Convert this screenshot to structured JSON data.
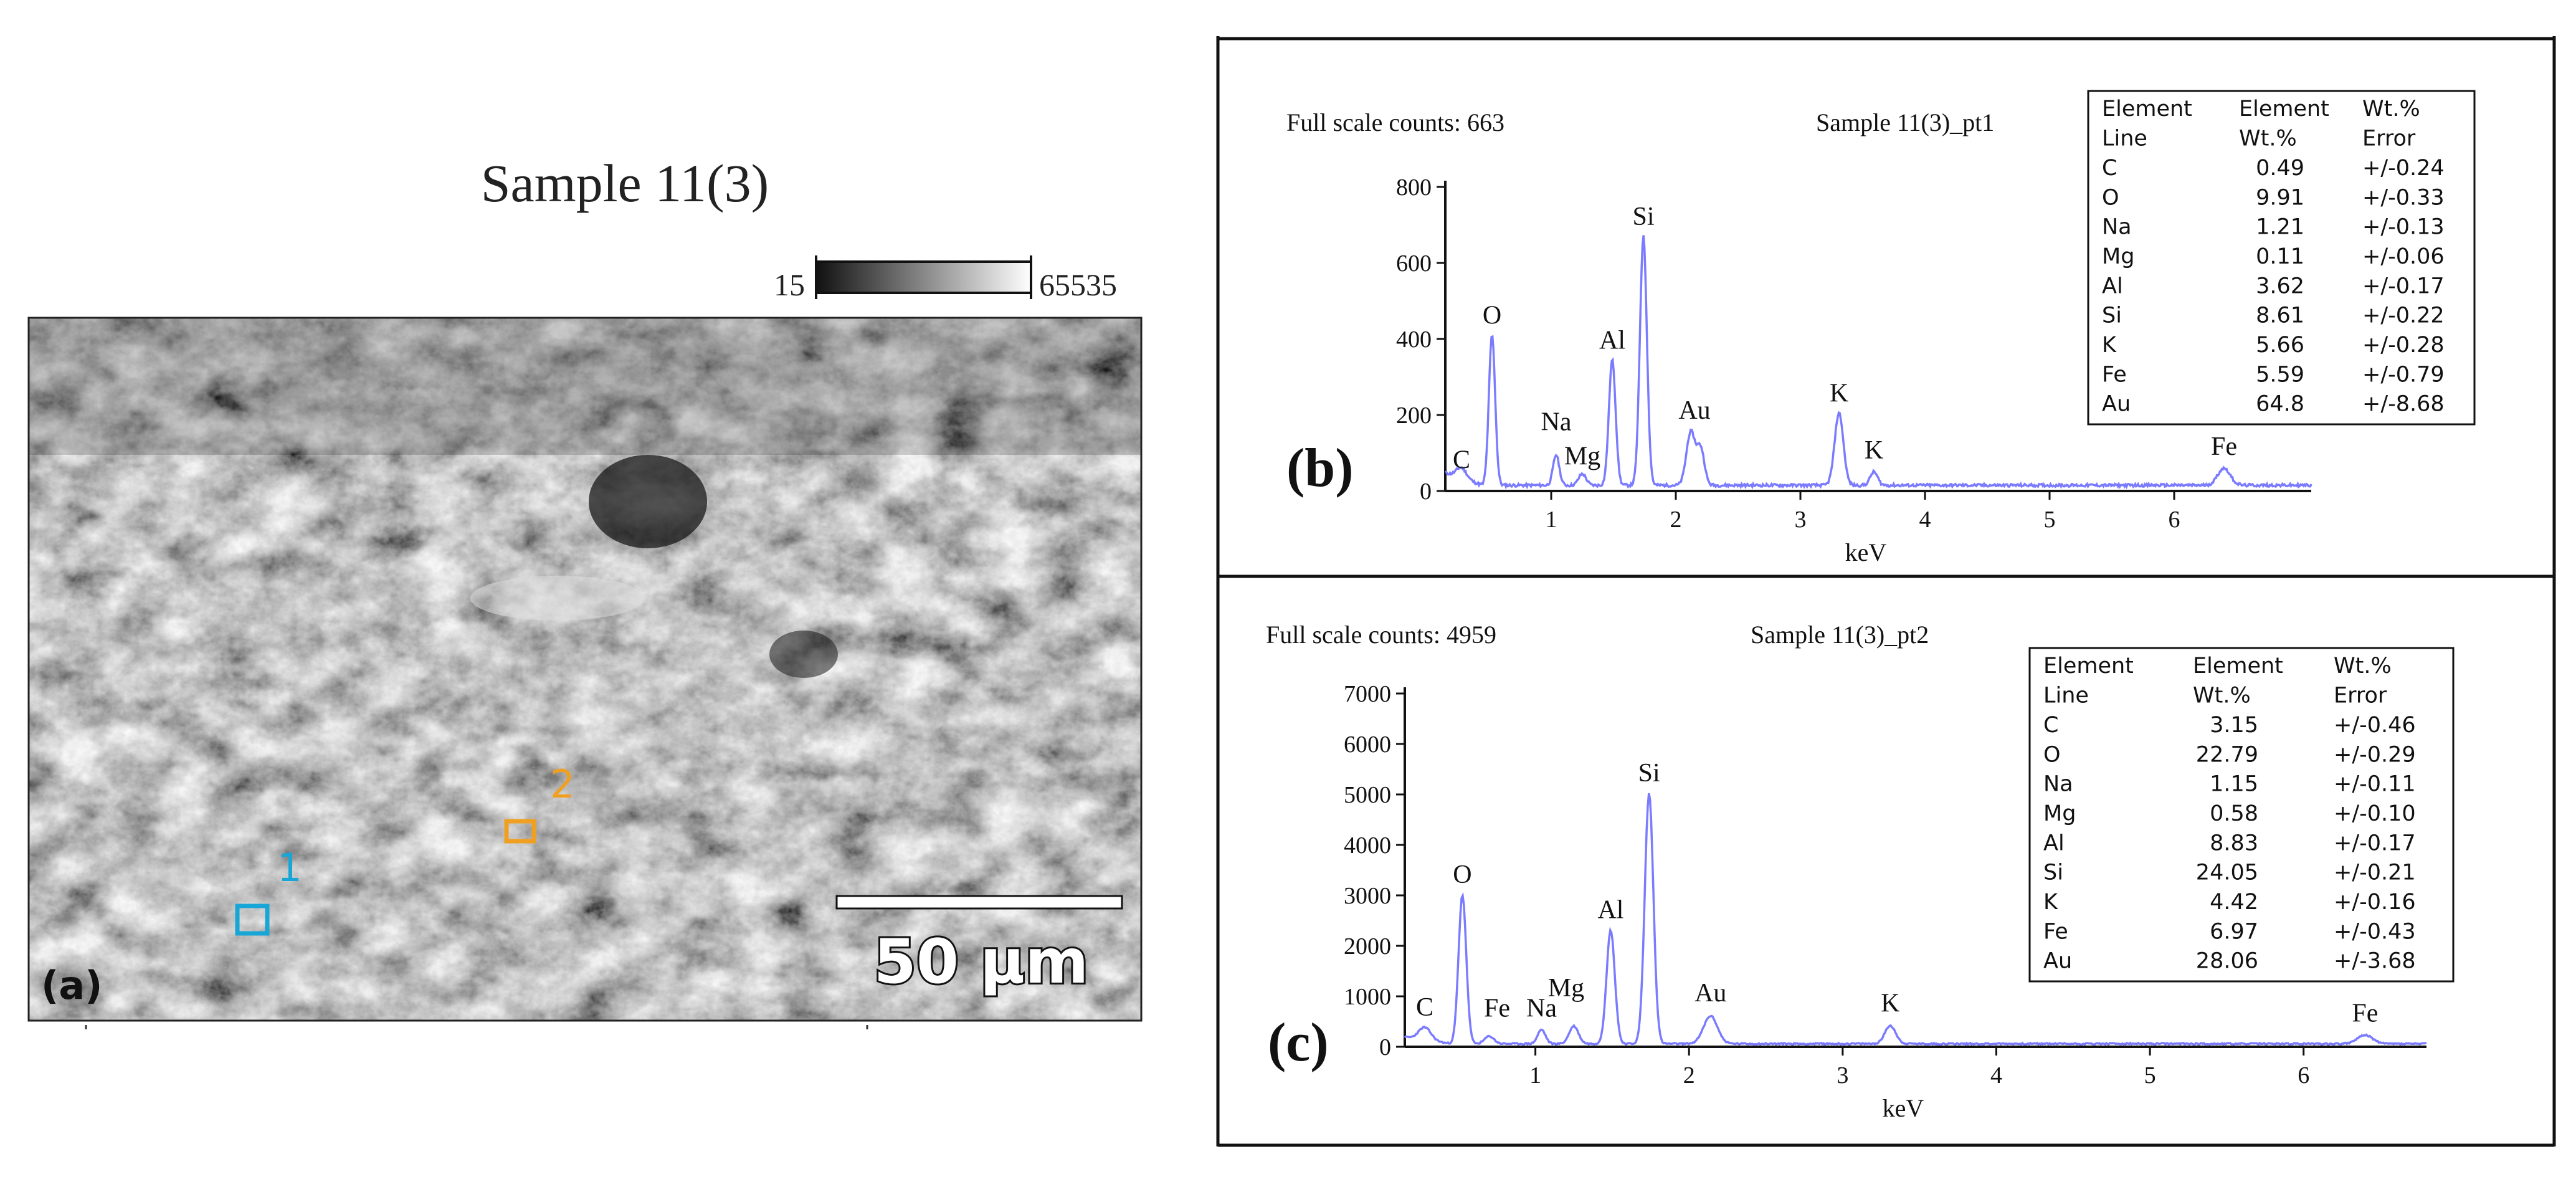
{
  "panel_a": {
    "title": "Sample 11(3)",
    "colorbar": {
      "min_label": "15",
      "max_label": "65535"
    },
    "scale_bar_label": "50 µm",
    "panel_label": "(a)",
    "marker_labels": [
      "1",
      "2"
    ],
    "colors": {
      "marker_1": "#17a6d6",
      "marker_2": "#f0a020",
      "scale_text": "#ffffff"
    }
  },
  "chart_data": [
    {
      "type": "line",
      "panel_label": "(b)",
      "header_left": "Full scale counts: 663",
      "header_center": "Sample 11(3)_pt1",
      "xlabel": "keV",
      "ylabel": "",
      "xlim": [
        0.15,
        7.1
      ],
      "ylim": [
        0,
        800
      ],
      "x_ticks": [
        1,
        2,
        3,
        4,
        5,
        6
      ],
      "y_ticks": [
        0,
        200,
        400,
        600,
        800
      ],
      "baseline": 15,
      "series": [
        {
          "peaks": [
            {
              "x": 0.28,
              "y": 28,
              "w": 0.04
            },
            {
              "x": 0.525,
              "y": 395,
              "w": 0.025
            },
            {
              "x": 1.04,
              "y": 80,
              "w": 0.025
            },
            {
              "x": 1.25,
              "y": 30,
              "w": 0.03
            },
            {
              "x": 1.49,
              "y": 330,
              "w": 0.027
            },
            {
              "x": 1.74,
              "y": 655,
              "w": 0.028
            },
            {
              "x": 2.12,
              "y": 140,
              "w": 0.035
            },
            {
              "x": 2.2,
              "y": 95,
              "w": 0.03
            },
            {
              "x": 3.31,
              "y": 190,
              "w": 0.035
            },
            {
              "x": 3.59,
              "y": 35,
              "w": 0.03
            },
            {
              "x": 6.4,
              "y": 45,
              "w": 0.05
            }
          ]
        }
      ],
      "peak_labels": [
        {
          "text": "C",
          "x": 0.28,
          "y": 60
        },
        {
          "text": "O",
          "x": 0.525,
          "y": 440
        },
        {
          "text": "Na",
          "x": 1.04,
          "y": 160
        },
        {
          "text": "Mg",
          "x": 1.25,
          "y": 70
        },
        {
          "text": "Al",
          "x": 1.49,
          "y": 375
        },
        {
          "text": "Si",
          "x": 1.74,
          "y": 700
        },
        {
          "text": "Au",
          "x": 2.15,
          "y": 190
        },
        {
          "text": "K",
          "x": 3.31,
          "y": 235
        },
        {
          "text": "K",
          "x": 3.59,
          "y": 85
        },
        {
          "text": "Fe",
          "x": 6.4,
          "y": 95
        }
      ],
      "table": {
        "headers": [
          [
            "Element",
            "Line"
          ],
          [
            "Element",
            "Wt.%"
          ],
          [
            "Wt.%",
            "Error"
          ]
        ],
        "rows": [
          [
            "C",
            "0.49",
            "+/-0.24"
          ],
          [
            "O",
            "9.91",
            "+/-0.33"
          ],
          [
            "Na",
            "1.21",
            "+/-0.13"
          ],
          [
            "Mg",
            "0.11",
            "+/-0.06"
          ],
          [
            "Al",
            "3.62",
            "+/-0.17"
          ],
          [
            "Si",
            "8.61",
            "+/-0.22"
          ],
          [
            "K",
            "5.66",
            "+/-0.28"
          ],
          [
            "Fe",
            "5.59",
            "+/-0.79"
          ],
          [
            "Au",
            "64.8",
            "+/-8.68"
          ]
        ]
      }
    },
    {
      "type": "line",
      "panel_label": "(c)",
      "header_left": "Full scale counts: 4959",
      "header_center": "Sample 11(3)_pt2",
      "xlabel": "keV",
      "ylabel": "",
      "xlim": [
        0.15,
        6.8
      ],
      "ylim": [
        0,
        7000
      ],
      "x_ticks": [
        1,
        2,
        3,
        4,
        5,
        6
      ],
      "y_ticks": [
        0,
        1000,
        2000,
        3000,
        4000,
        5000,
        6000,
        7000
      ],
      "baseline": 60,
      "series": [
        {
          "peaks": [
            {
              "x": 0.28,
              "y": 250,
              "w": 0.04
            },
            {
              "x": 0.525,
              "y": 2950,
              "w": 0.025
            },
            {
              "x": 0.7,
              "y": 150,
              "w": 0.03
            },
            {
              "x": 1.04,
              "y": 280,
              "w": 0.025
            },
            {
              "x": 1.25,
              "y": 350,
              "w": 0.03
            },
            {
              "x": 1.49,
              "y": 2250,
              "w": 0.027
            },
            {
              "x": 1.74,
              "y": 4959,
              "w": 0.028
            },
            {
              "x": 2.14,
              "y": 550,
              "w": 0.045
            },
            {
              "x": 3.31,
              "y": 360,
              "w": 0.035
            },
            {
              "x": 6.4,
              "y": 170,
              "w": 0.05
            }
          ]
        }
      ],
      "peak_labels": [
        {
          "text": "C",
          "x": 0.28,
          "y": 620
        },
        {
          "text": "O",
          "x": 0.525,
          "y": 3250
        },
        {
          "text": "Fe",
          "x": 0.75,
          "y": 600
        },
        {
          "text": "Na",
          "x": 1.04,
          "y": 600
        },
        {
          "text": "Mg",
          "x": 1.2,
          "y": 1000
        },
        {
          "text": "Al",
          "x": 1.49,
          "y": 2550
        },
        {
          "text": "Si",
          "x": 1.74,
          "y": 5260
        },
        {
          "text": "Au",
          "x": 2.14,
          "y": 900
        },
        {
          "text": "K",
          "x": 3.31,
          "y": 700
        },
        {
          "text": "Fe",
          "x": 6.4,
          "y": 500
        }
      ],
      "table": {
        "headers": [
          [
            "Element",
            "Line"
          ],
          [
            "Element",
            "Wt.%"
          ],
          [
            "Wt.%",
            "Error"
          ]
        ],
        "rows": [
          [
            "C",
            "3.15",
            "+/-0.46"
          ],
          [
            "O",
            "22.79",
            "+/-0.29"
          ],
          [
            "Na",
            "1.15",
            "+/-0.11"
          ],
          [
            "Mg",
            "0.58",
            "+/-0.10"
          ],
          [
            "Al",
            "8.83",
            "+/-0.17"
          ],
          [
            "Si",
            "24.05",
            "+/-0.21"
          ],
          [
            "K",
            "4.42",
            "+/-0.16"
          ],
          [
            "Fe",
            "6.97",
            "+/-0.43"
          ],
          [
            "Au",
            "28.06",
            "+/-3.68"
          ]
        ]
      }
    }
  ],
  "colors": {
    "spectrum_line": "#7b7bff",
    "frame": "#111111"
  }
}
